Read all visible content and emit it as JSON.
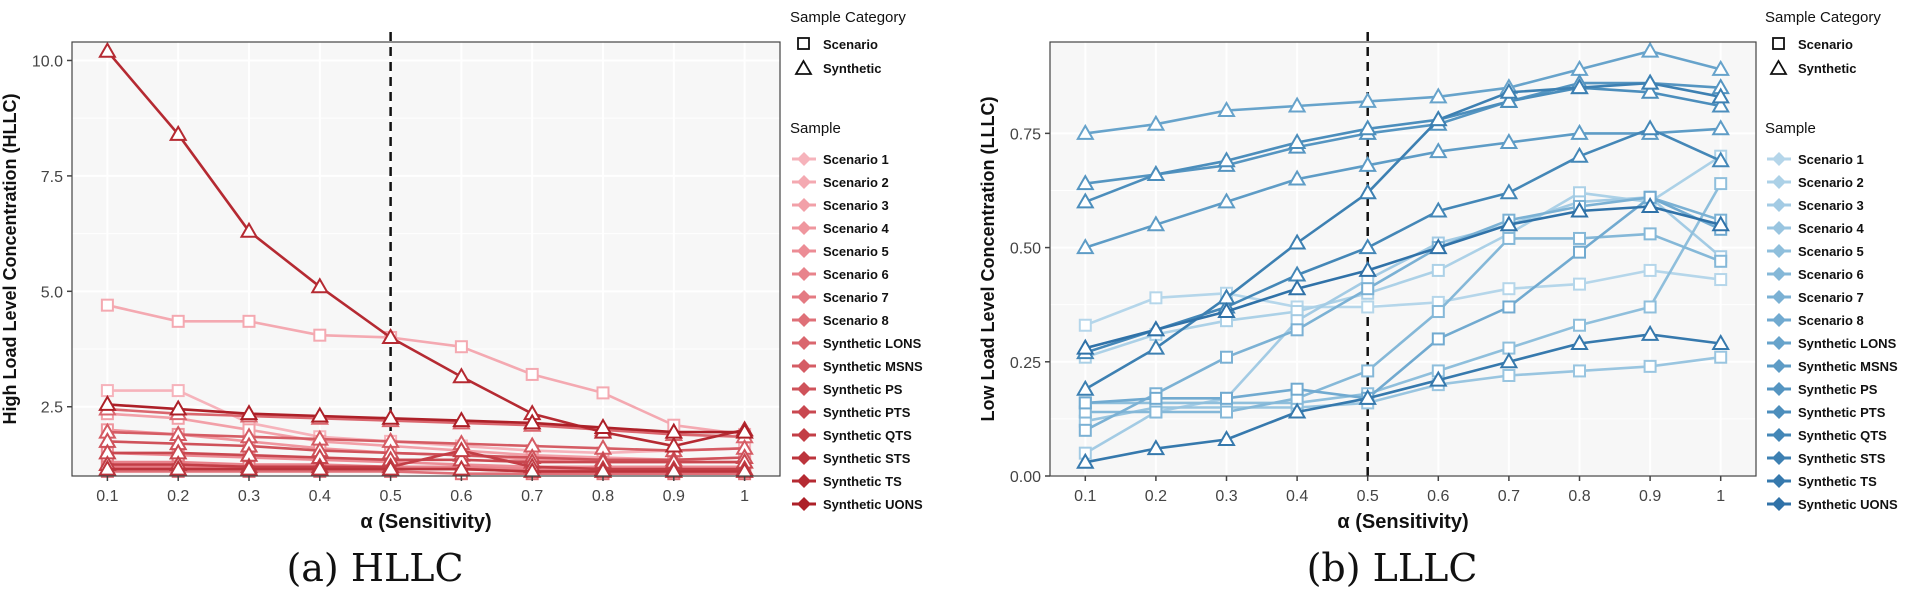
{
  "figure": {
    "captions": [
      "(a) HLLC",
      "(b) LLLC"
    ],
    "legend_category_title": "Sample Category",
    "legend_categories": [
      "Scenario",
      "Synthetic"
    ],
    "legend_sample_title": "Sample"
  },
  "chart_data": [
    {
      "type": "line",
      "caption": "(a) HLLC",
      "xlabel": "α (Sensitivity)",
      "ylabel": "High Load Level Concentration (HLLC)",
      "x": [
        0.1,
        0.2,
        0.3,
        0.4,
        0.5,
        0.6,
        0.7,
        0.8,
        0.9,
        1
      ],
      "x_ticks": [
        "0.1",
        "0.2",
        "0.3",
        "0.4",
        "0.5",
        "0.6",
        "0.7",
        "0.8",
        "0.9",
        "1"
      ],
      "y_ticks": [
        2.5,
        5.0,
        7.5,
        10.0
      ],
      "y_tick_labels": [
        "2.5",
        "5.0",
        "7.5",
        "10.0"
      ],
      "ylim": [
        1.0,
        10.4
      ],
      "reference_line_x": 0.5,
      "grid": true,
      "legend_position": "right",
      "series": [
        {
          "name": "Scenario 1",
          "category": "Scenario",
          "color": "#f6b3bb",
          "values": [
            2.85,
            2.85,
            2.15,
            1.85,
            1.75,
            1.65,
            1.55,
            1.5,
            1.55,
            1.6
          ]
        },
        {
          "name": "Scenario 2",
          "category": "Scenario",
          "color": "#f4a9b1",
          "values": [
            4.7,
            4.35,
            4.35,
            4.05,
            4.0,
            3.8,
            3.2,
            2.8,
            2.1,
            1.9
          ]
        },
        {
          "name": "Scenario 3",
          "category": "Scenario",
          "color": "#f2a0a8",
          "values": [
            2.35,
            2.25,
            2.0,
            1.75,
            1.65,
            1.55,
            1.45,
            1.4,
            1.35,
            1.4
          ]
        },
        {
          "name": "Scenario 4",
          "category": "Scenario",
          "color": "#ef969e",
          "values": [
            2.0,
            1.9,
            1.75,
            1.6,
            1.5,
            1.45,
            1.35,
            1.3,
            1.3,
            1.3
          ]
        },
        {
          "name": "Scenario 5",
          "category": "Scenario",
          "color": "#ec8c95",
          "values": [
            1.5,
            1.45,
            1.4,
            1.35,
            1.3,
            1.25,
            1.2,
            1.2,
            1.2,
            1.2
          ]
        },
        {
          "name": "Scenario 6",
          "category": "Scenario",
          "color": "#e8838b",
          "values": [
            1.3,
            1.3,
            1.25,
            1.25,
            1.2,
            1.2,
            1.15,
            1.15,
            1.15,
            1.15
          ]
        },
        {
          "name": "Scenario 7",
          "category": "Scenario",
          "color": "#e47a82",
          "values": [
            1.2,
            1.2,
            1.2,
            1.15,
            1.15,
            1.15,
            1.1,
            1.1,
            1.1,
            1.1
          ]
        },
        {
          "name": "Scenario 8",
          "category": "Scenario",
          "color": "#df7078",
          "values": [
            1.1,
            1.1,
            1.1,
            1.1,
            1.1,
            1.05,
            1.05,
            1.05,
            1.05,
            1.05
          ]
        },
        {
          "name": "Synthetic LONS",
          "category": "Synthetic",
          "color": "#da666e",
          "values": [
            2.45,
            2.35,
            2.3,
            2.25,
            2.2,
            2.15,
            2.1,
            2.0,
            1.9,
            1.85
          ]
        },
        {
          "name": "Synthetic MSNS",
          "category": "Synthetic",
          "color": "#d55c64",
          "values": [
            1.95,
            1.9,
            1.85,
            1.8,
            1.75,
            1.7,
            1.65,
            1.6,
            1.55,
            1.6
          ]
        },
        {
          "name": "Synthetic PS",
          "category": "Synthetic",
          "color": "#cf525a",
          "values": [
            1.75,
            1.7,
            1.65,
            1.55,
            1.5,
            1.45,
            1.4,
            1.35,
            1.35,
            1.4
          ]
        },
        {
          "name": "Synthetic PTS",
          "category": "Synthetic",
          "color": "#c94850",
          "values": [
            1.5,
            1.5,
            1.45,
            1.4,
            1.35,
            1.35,
            1.3,
            1.3,
            1.3,
            1.3
          ]
        },
        {
          "name": "Synthetic QTS",
          "category": "Synthetic",
          "color": "#c33e46",
          "values": [
            1.25,
            1.25,
            1.2,
            1.2,
            1.2,
            1.55,
            1.2,
            1.15,
            1.15,
            1.15
          ]
        },
        {
          "name": "Synthetic STS",
          "category": "Synthetic",
          "color": "#bc343c",
          "values": [
            1.15,
            1.15,
            1.15,
            1.15,
            1.15,
            1.15,
            1.1,
            1.1,
            1.1,
            1.1
          ]
        },
        {
          "name": "Synthetic TS",
          "category": "Synthetic",
          "color": "#b52a32",
          "values": [
            10.2,
            8.4,
            6.3,
            5.1,
            4.0,
            3.15,
            2.35,
            1.95,
            1.65,
            2.0
          ]
        },
        {
          "name": "Synthetic UONS",
          "category": "Synthetic",
          "color": "#ad2028",
          "values": [
            2.55,
            2.45,
            2.35,
            2.3,
            2.25,
            2.2,
            2.15,
            2.05,
            1.95,
            1.95
          ]
        }
      ]
    },
    {
      "type": "line",
      "caption": "(b) LLLC",
      "xlabel": "α (Sensitivity)",
      "ylabel": "Low Load Level Concentration (LLLC)",
      "x": [
        0.1,
        0.2,
        0.3,
        0.4,
        0.5,
        0.6,
        0.7,
        0.8,
        0.9,
        1
      ],
      "x_ticks": [
        "0.1",
        "0.2",
        "0.3",
        "0.4",
        "0.5",
        "0.6",
        "0.7",
        "0.8",
        "0.9",
        "1"
      ],
      "y_ticks": [
        0.0,
        0.25,
        0.5,
        0.75
      ],
      "y_tick_labels": [
        "0.00",
        "0.25",
        "0.50",
        "0.75"
      ],
      "ylim": [
        0.0,
        0.95
      ],
      "reference_line_x": 0.5,
      "grid": true,
      "legend_position": "right",
      "series": [
        {
          "name": "Scenario 1",
          "category": "Scenario",
          "color": "#b5d6ea",
          "values": [
            0.33,
            0.39,
            0.4,
            0.37,
            0.37,
            0.38,
            0.41,
            0.42,
            0.45,
            0.43
          ]
        },
        {
          "name": "Scenario 2",
          "category": "Scenario",
          "color": "#acd1e7",
          "values": [
            0.26,
            0.31,
            0.34,
            0.36,
            0.4,
            0.45,
            0.53,
            0.62,
            0.6,
            0.7
          ]
        },
        {
          "name": "Scenario 3",
          "category": "Scenario",
          "color": "#a3cbe4",
          "values": [
            0.05,
            0.14,
            0.17,
            0.34,
            0.43,
            0.51,
            0.55,
            0.6,
            0.61,
            0.48
          ]
        },
        {
          "name": "Scenario 4",
          "category": "Scenario",
          "color": "#99c5e0",
          "values": [
            0.12,
            0.15,
            0.15,
            0.15,
            0.16,
            0.2,
            0.22,
            0.23,
            0.24,
            0.26
          ]
        },
        {
          "name": "Scenario 5",
          "category": "Scenario",
          "color": "#8fbfdc",
          "values": [
            0.16,
            0.16,
            0.16,
            0.16,
            0.18,
            0.23,
            0.28,
            0.33,
            0.37,
            0.64
          ]
        },
        {
          "name": "Scenario 6",
          "category": "Scenario",
          "color": "#85b8d8",
          "values": [
            0.14,
            0.14,
            0.14,
            0.17,
            0.23,
            0.36,
            0.52,
            0.52,
            0.53,
            0.47
          ]
        },
        {
          "name": "Scenario 7",
          "category": "Scenario",
          "color": "#7bb1d4",
          "values": [
            0.1,
            0.18,
            0.26,
            0.32,
            0.41,
            0.5,
            0.56,
            0.59,
            0.61,
            0.56
          ]
        },
        {
          "name": "Scenario 8",
          "category": "Scenario",
          "color": "#71aad0",
          "values": [
            0.16,
            0.17,
            0.17,
            0.19,
            0.17,
            0.3,
            0.37,
            0.49,
            0.61,
            0.54
          ]
        },
        {
          "name": "Synthetic LONS",
          "category": "Synthetic",
          "color": "#67a3cb",
          "values": [
            0.75,
            0.77,
            0.8,
            0.81,
            0.82,
            0.83,
            0.85,
            0.89,
            0.93,
            0.89
          ]
        },
        {
          "name": "Synthetic MSNS",
          "category": "Synthetic",
          "color": "#5e9cc6",
          "values": [
            0.5,
            0.55,
            0.6,
            0.65,
            0.68,
            0.71,
            0.73,
            0.75,
            0.75,
            0.76
          ]
        },
        {
          "name": "Synthetic PS",
          "category": "Synthetic",
          "color": "#5595c1",
          "values": [
            0.64,
            0.66,
            0.68,
            0.72,
            0.75,
            0.77,
            0.82,
            0.86,
            0.86,
            0.85
          ]
        },
        {
          "name": "Synthetic PTS",
          "category": "Synthetic",
          "color": "#4c8ebc",
          "values": [
            0.6,
            0.66,
            0.69,
            0.73,
            0.76,
            0.78,
            0.82,
            0.85,
            0.84,
            0.81
          ]
        },
        {
          "name": "Synthetic QTS",
          "category": "Synthetic",
          "color": "#4487b7",
          "values": [
            0.27,
            0.32,
            0.37,
            0.44,
            0.5,
            0.58,
            0.62,
            0.7,
            0.76,
            0.69
          ]
        },
        {
          "name": "Synthetic STS",
          "category": "Synthetic",
          "color": "#3d80b2",
          "values": [
            0.19,
            0.28,
            0.39,
            0.51,
            0.62,
            0.78,
            0.84,
            0.85,
            0.86,
            0.83
          ]
        },
        {
          "name": "Synthetic TS",
          "category": "Synthetic",
          "color": "#3679ad",
          "values": [
            0.03,
            0.06,
            0.08,
            0.14,
            0.17,
            0.21,
            0.25,
            0.29,
            0.31,
            0.29
          ]
        },
        {
          "name": "Synthetic UONS",
          "category": "Synthetic",
          "color": "#3072a8",
          "values": [
            0.28,
            0.32,
            0.36,
            0.41,
            0.45,
            0.5,
            0.55,
            0.58,
            0.59,
            0.55
          ]
        }
      ]
    }
  ]
}
